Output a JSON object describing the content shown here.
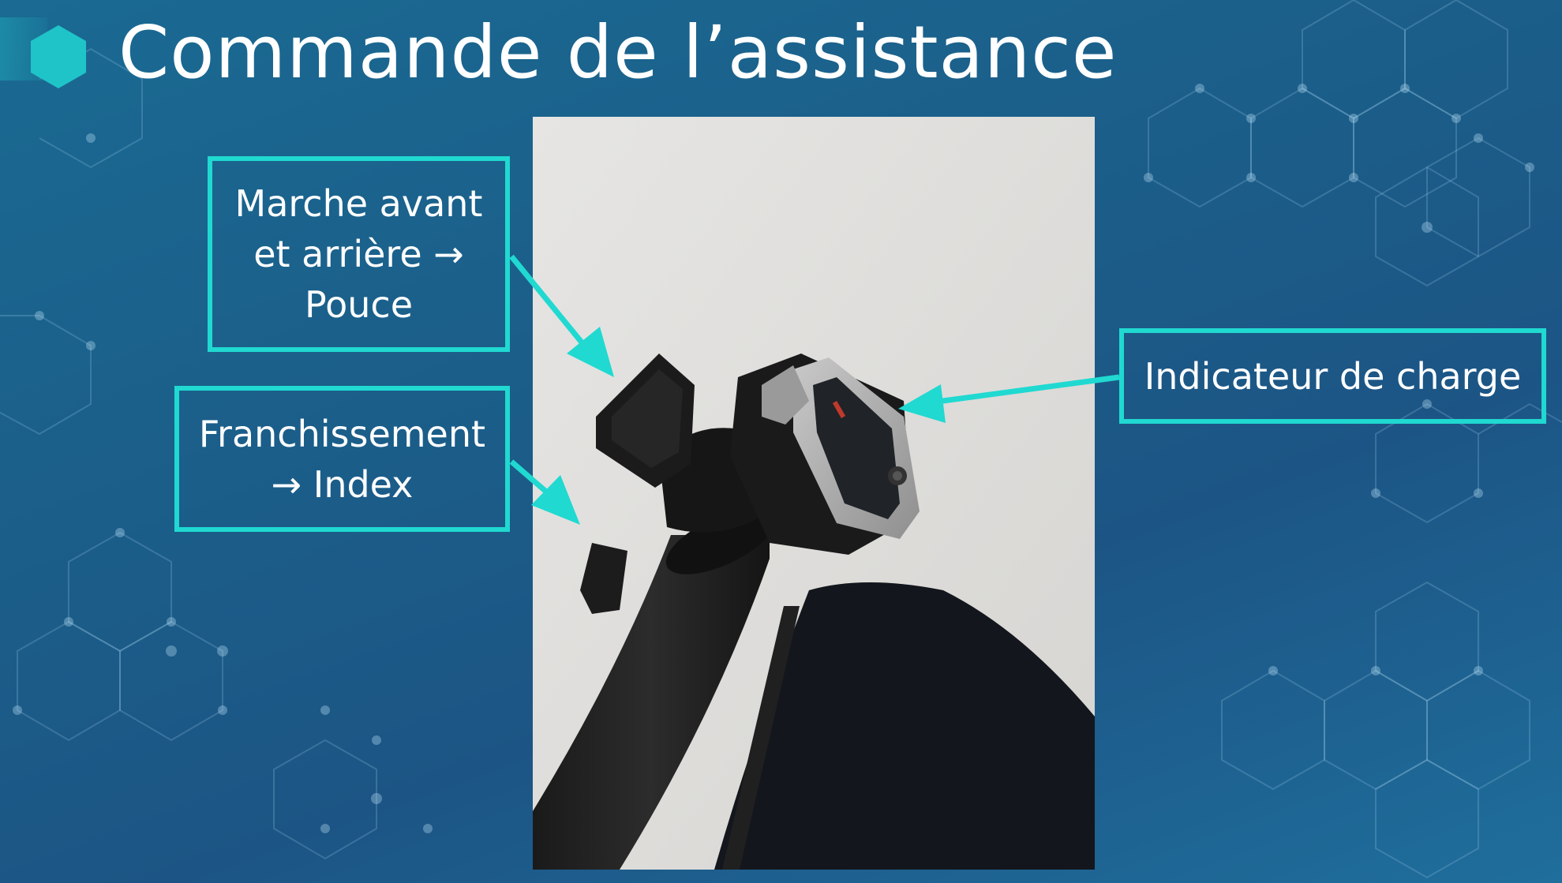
{
  "slide": {
    "title": "Commande de l’assistance",
    "accent_color": "#20d9d1",
    "background_color": "#1b5f8a"
  },
  "callouts": {
    "marche": {
      "lines": [
        "Marche avant",
        "et arrière →",
        "Pouce"
      ]
    },
    "franchissement": {
      "lines": [
        "Franchissement",
        "→ Index"
      ]
    },
    "charge": {
      "lines": [
        "Indicateur de charge"
      ]
    }
  },
  "photo": {
    "subject": "wheelchair-assist-control"
  },
  "icons": {
    "title_marker": "hexagon-icon"
  }
}
